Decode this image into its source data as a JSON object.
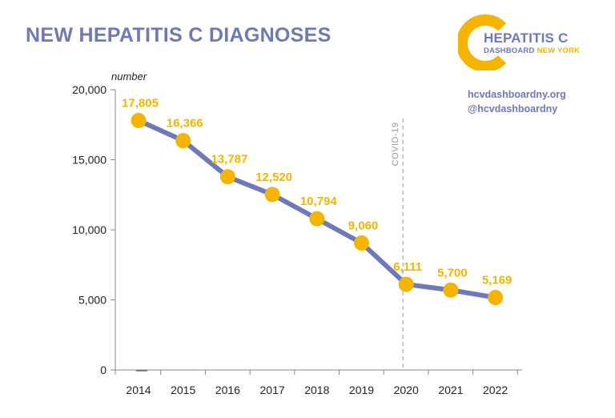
{
  "title": "NEW HEPATITIS C DIAGNOSES",
  "logo": {
    "main": "HEPATITIS C",
    "sub_a": "DASHBOARD",
    "sub_b": "NEW YORK"
  },
  "links": {
    "site": "hcvdashboardny.org",
    "handle": "@hcvdashboardny"
  },
  "colors": {
    "line": "#6f78b8",
    "marker": "#f4b400",
    "label": "#f4b400",
    "title": "#6f78b8"
  },
  "chart_data": {
    "type": "line",
    "title": "NEW HEPATITIS C DIAGNOSES",
    "ylabel": "number",
    "xlabel": "",
    "categories": [
      "2014",
      "2015",
      "2016",
      "2017",
      "2018",
      "2019",
      "2020",
      "2021",
      "2022"
    ],
    "series": [
      {
        "name": "New hepatitis C diagnoses",
        "values": [
          17805,
          16366,
          13787,
          12520,
          10794,
          9060,
          6111,
          5700,
          5169
        ]
      }
    ],
    "data_labels": [
      "17,805",
      "16,366",
      "13,787",
      "12,520",
      "10,794",
      "9,060",
      "6,111",
      "5,700",
      "5,169"
    ],
    "yticks": [
      0,
      5000,
      10000,
      15000,
      20000
    ],
    "ytick_labels": [
      "0",
      "5,000",
      "10,000",
      "15,000",
      "20,000"
    ],
    "ylim": [
      0,
      20000
    ],
    "annotation": {
      "label": "COVID-19",
      "at": "2020"
    }
  }
}
